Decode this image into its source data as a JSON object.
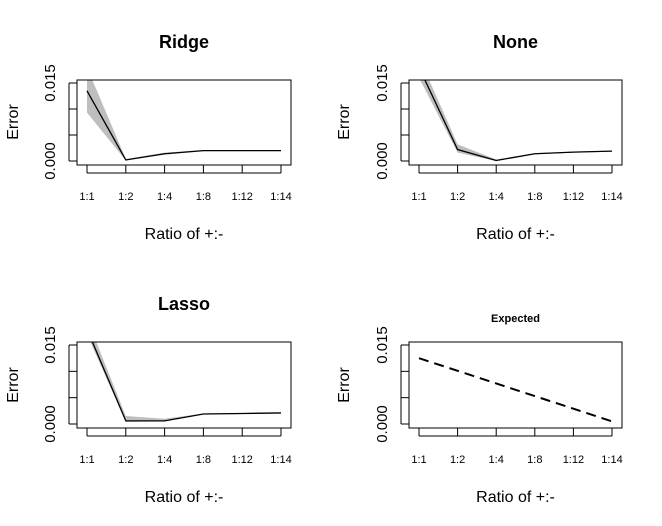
{
  "chart_data": [
    {
      "type": "line",
      "title": "Ridge",
      "xlabel": "Ratio of +:-",
      "ylabel": "Error",
      "categories": [
        "1:1",
        "1:2",
        "1:4",
        "1:8",
        "1:12",
        "1:14"
      ],
      "y_tick_labels": [
        "0.000",
        "0.015"
      ],
      "ylim": [
        0,
        0.015
      ],
      "series": [
        {
          "values": [
            0.0135,
            0.0002,
            0.0014,
            0.002,
            0.002,
            0.002
          ],
          "lower": [
            0.0093,
            0.0001,
            0.0012,
            0.0019,
            0.0019,
            0.0019
          ],
          "upper": [
            0.018,
            0.0004,
            0.0016,
            0.0021,
            0.0021,
            0.0021
          ],
          "color": "#000000",
          "band_color": "#bebebe",
          "dash": false
        }
      ]
    },
    {
      "type": "line",
      "title": "None",
      "xlabel": "Ratio of +:-",
      "ylabel": "Error",
      "categories": [
        "1:1",
        "1:2",
        "1:4",
        "1:8",
        "1:12",
        "1:14"
      ],
      "y_tick_labels": [
        "0.000",
        "0.015"
      ],
      "ylim": [
        0,
        0.015
      ],
      "series": [
        {
          "values": [
            0.018,
            0.0022,
            0.0001,
            0.0014,
            0.0017,
            0.0019
          ],
          "lower": [
            0.016,
            0.0016,
            0.0,
            0.0013,
            0.0016,
            0.0018
          ],
          "upper": [
            0.02,
            0.0032,
            0.0003,
            0.0015,
            0.0018,
            0.002
          ],
          "color": "#000000",
          "band_color": "#bebebe",
          "dash": false
        }
      ]
    },
    {
      "type": "line",
      "title": "Lasso",
      "xlabel": "Ratio of +:-",
      "ylabel": "Error",
      "categories": [
        "1:1",
        "1:2",
        "1:4",
        "1:8",
        "1:12",
        "1:14"
      ],
      "y_tick_labels": [
        "0.000",
        "0.015"
      ],
      "ylim": [
        0,
        0.015
      ],
      "series": [
        {
          "values": [
            0.018,
            0.0006,
            0.0006,
            0.0019,
            0.002,
            0.0021
          ],
          "lower": [
            0.017,
            0.0004,
            0.0005,
            0.0018,
            0.0019,
            0.002
          ],
          "upper": [
            0.02,
            0.0015,
            0.001,
            0.002,
            0.0021,
            0.0022
          ],
          "color": "#000000",
          "band_color": "#bebebe",
          "dash": false
        }
      ]
    },
    {
      "type": "line",
      "title": "Expected",
      "xlabel": "Ratio of +:-",
      "ylabel": "Error",
      "categories": [
        "1:1",
        "1:2",
        "1:4",
        "1:8",
        "1:12",
        "1:14"
      ],
      "y_tick_labels": [
        "0.000",
        "0.015"
      ],
      "ylim": [
        0,
        0.015
      ],
      "series": [
        {
          "values": [
            0.0125,
            0.0101,
            0.0077,
            0.0053,
            0.0029,
            0.0005
          ],
          "color": "#000000",
          "dash": true
        }
      ]
    }
  ]
}
